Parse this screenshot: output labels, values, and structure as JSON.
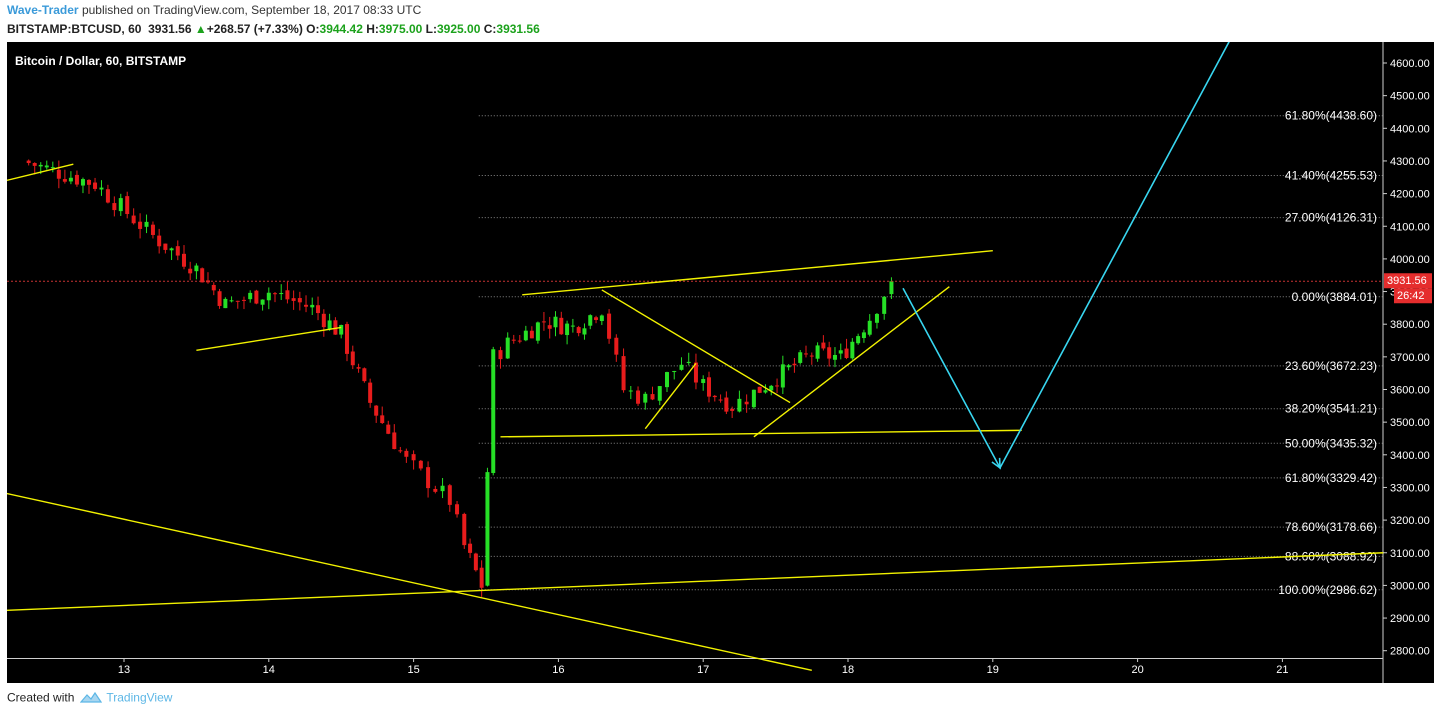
{
  "header": {
    "author": "Wave-Trader",
    "published_text": "published on TradingView.com, September 18, 2017 08:33 UTC",
    "symbol": "BITSTAMP:BTCUSD, 60",
    "last_price": "3931.56",
    "change_arrow": "▲",
    "change": "+268.57 (+7.33%)",
    "open_label": "O:",
    "open": "3944.42",
    "high_label": "H:",
    "high": "3975.00",
    "low_label": "L:",
    "low": "3925.00",
    "close_label": "C:",
    "close": "3931.56"
  },
  "footer": {
    "created_with": "Created with",
    "brand": "TradingView"
  },
  "chart_data": {
    "type": "candlestick",
    "title": "Bitcoin / Dollar, 60, BITSTAMP",
    "background": "#000000",
    "up_color": "#26e026",
    "down_color": "#e81c1c",
    "x_axis_labels": [
      "13",
      "14",
      "15",
      "16",
      "17",
      "18",
      "19",
      "20",
      "21"
    ],
    "x_axis_days": [
      13,
      14,
      15,
      16,
      17,
      18,
      19,
      20,
      21
    ],
    "y_axis_ticks": [
      2800,
      2900,
      3000,
      3100,
      3200,
      3300,
      3400,
      3500,
      3600,
      3700,
      3800,
      3900,
      4000,
      4100,
      4200,
      4300,
      4400,
      4500,
      4600
    ],
    "y_axis_range": [
      2740,
      4660
    ],
    "y_axis_grid": false,
    "current_price": 3931.56,
    "current_price_label": "3931.56",
    "countdown_label": "26:42",
    "price_colors": {
      "current_badge": "#e52d2d",
      "countdown_badge": "#e52d2d"
    },
    "series": [
      {
        "name": "close",
        "x_day": [
          12.3,
          12.8,
          13.2,
          13.5,
          13.7,
          14.0,
          14.3,
          14.5,
          14.7,
          14.95,
          15.1,
          15.25,
          15.35,
          15.47,
          15.55,
          15.65,
          15.9,
          16.1,
          16.3,
          16.45,
          16.6,
          16.75,
          16.85,
          17.0,
          17.2,
          17.35,
          17.55,
          17.75,
          17.95,
          18.15,
          18.3
        ],
        "close": [
          4300,
          4230,
          4070,
          3970,
          3860,
          3900,
          3850,
          3770,
          3560,
          3380,
          3320,
          3260,
          3120,
          3000,
          3700,
          3740,
          3810,
          3790,
          3850,
          3600,
          3570,
          3640,
          3680,
          3610,
          3550,
          3590,
          3650,
          3710,
          3700,
          3820,
          3931.56
        ]
      }
    ],
    "fibonacci": {
      "line_color": "#888888",
      "levels": [
        {
          "label": "61.80%(4438.60)",
          "price": 4438.6
        },
        {
          "label": "41.40%(4255.53)",
          "price": 4255.53
        },
        {
          "label": "27.00%(4126.31)",
          "price": 4126.31
        },
        {
          "label": "0.00%(3884.01)",
          "price": 3884.01
        },
        {
          "label": "23.60%(3672.23)",
          "price": 3672.23
        },
        {
          "label": "38.20%(3541.21)",
          "price": 3541.21
        },
        {
          "label": "50.00%(3435.32)",
          "price": 3435.32
        },
        {
          "label": "61.80%(3329.42)",
          "price": 3329.42
        },
        {
          "label": "78.60%(3178.66)",
          "price": 3178.66
        },
        {
          "label": "88.60%(3088.92)",
          "price": 3088.92
        },
        {
          "label": "100.00%(2986.62)",
          "price": 2986.62
        }
      ]
    },
    "trendlines_color": "#f2f200",
    "trendlines": [
      {
        "from": [
          12.0,
          4220
        ],
        "to": [
          12.65,
          4290
        ]
      },
      {
        "from": [
          13.5,
          3720
        ],
        "to": [
          14.5,
          3790
        ]
      },
      {
        "from": [
          12.0,
          3300
        ],
        "to": [
          17.75,
          2740
        ]
      },
      {
        "from": [
          12.0,
          2920
        ],
        "to": [
          21.7,
          3100
        ]
      },
      {
        "from": [
          15.6,
          3455
        ],
        "to": [
          19.2,
          3475
        ]
      },
      {
        "from": [
          15.75,
          3890
        ],
        "to": [
          19.0,
          4025
        ]
      },
      {
        "from": [
          16.3,
          3905
        ],
        "to": [
          17.6,
          3560
        ]
      },
      {
        "from": [
          16.6,
          3480
        ],
        "to": [
          16.95,
          3680
        ]
      },
      {
        "from": [
          17.35,
          3455
        ],
        "to": [
          18.7,
          3915
        ]
      }
    ],
    "projection_color": "#38d6f0",
    "projection_path": [
      [
        18.38,
        3910
      ],
      [
        19.05,
        3360
      ],
      [
        20.65,
        4680
      ]
    ]
  }
}
